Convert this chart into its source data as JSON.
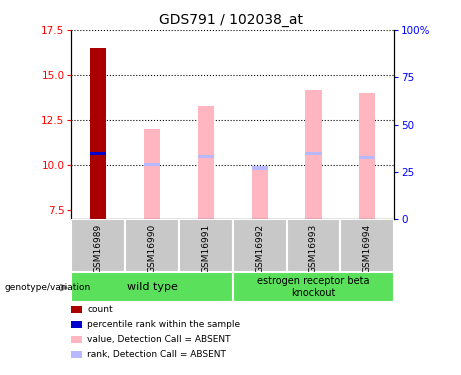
{
  "title": "GDS791 / 102038_at",
  "samples": [
    "GSM16989",
    "GSM16990",
    "GSM16991",
    "GSM16992",
    "GSM16993",
    "GSM16994"
  ],
  "ylim_left": [
    7.0,
    17.5
  ],
  "ylim_right": [
    0,
    100
  ],
  "yticks_left": [
    7.5,
    10.0,
    12.5,
    15.0,
    17.5
  ],
  "yticks_right": [
    0,
    25,
    50,
    75,
    100
  ],
  "ytick_labels_right": [
    "0",
    "25",
    "50",
    "75",
    "100%"
  ],
  "bar_value_color": "#FFB6C1",
  "bar_rank_color": "#B8B8FF",
  "count_color": "#AA0000",
  "rank_dot_color": "#0000CC",
  "bar_bottom": 7.0,
  "value_bars": [
    16.5,
    12.0,
    13.3,
    9.75,
    14.2,
    14.0
  ],
  "rank_bars": [
    10.65,
    10.05,
    10.5,
    0,
    10.65,
    10.45
  ],
  "rank_bar_gsm16992": 9.85,
  "count_bar_height": 16.5,
  "rank_dot_value": 10.65,
  "wild_type_label": "wild type",
  "knockout_label": "estrogen receptor beta\nknockout",
  "group_color": "#5AE05A",
  "genotype_label": "genotype/variation",
  "legend_items": [
    {
      "color": "#AA0000",
      "label": "count"
    },
    {
      "color": "#0000CC",
      "label": "percentile rank within the sample"
    },
    {
      "color": "#FFB6C1",
      "label": "value, Detection Call = ABSENT"
    },
    {
      "color": "#B8B8FF",
      "label": "rank, Detection Call = ABSENT"
    }
  ],
  "sample_bg": "#C8C8C8",
  "bar_width": 0.3
}
